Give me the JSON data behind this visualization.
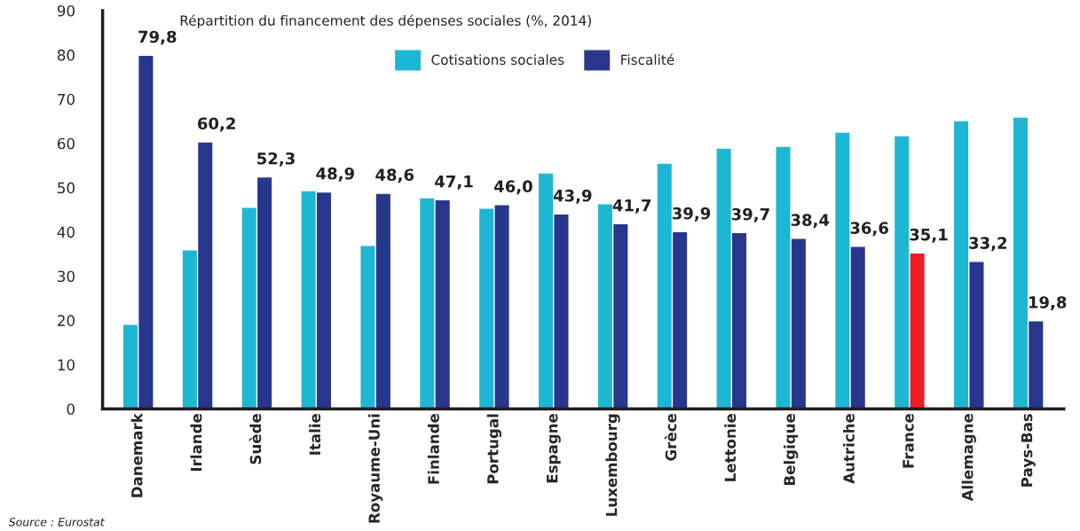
{
  "chart_data": {
    "type": "bar",
    "title": "Répartition du financement des dépenses sociales (%, 2014)",
    "categories": [
      "Danemark",
      "Irlande",
      "Suède",
      "Italie",
      "Royaume-Uni",
      "Finlande",
      "Portugal",
      "Espagne",
      "Luxembourg",
      "Grèce",
      "Lettonie",
      "Belgique",
      "Autriche",
      "France",
      "Allemagne",
      "Pays-Bas"
    ],
    "series": [
      {
        "name": "Cotisations sociales",
        "color": "#1db7d4",
        "values": [
          19.0,
          35.8,
          45.4,
          49.2,
          36.8,
          47.6,
          45.2,
          53.2,
          46.2,
          55.4,
          58.8,
          59.2,
          62.4,
          61.6,
          65.0,
          65.8
        ]
      },
      {
        "name": "Fiscalité",
        "color": "#28368c",
        "colors": [
          "#28368c",
          "#28368c",
          "#28368c",
          "#28368c",
          "#28368c",
          "#28368c",
          "#28368c",
          "#28368c",
          "#28368c",
          "#28368c",
          "#28368c",
          "#28368c",
          "#28368c",
          "#ee1c25",
          "#28368c",
          "#28368c"
        ],
        "values": [
          79.8,
          60.2,
          52.3,
          48.9,
          48.6,
          47.1,
          46.0,
          43.9,
          41.7,
          39.9,
          39.7,
          38.4,
          36.6,
          35.1,
          33.2,
          19.8
        ],
        "value_labels": [
          "79,8",
          "60,2",
          "52,3",
          "48,9",
          "48,6",
          "47,1",
          "46,0",
          "43,9",
          "41,7",
          "39,9",
          "39,7",
          "38,4",
          "36,6",
          "35,1",
          "33,2",
          "19,8"
        ]
      }
    ],
    "ylim": [
      0,
      90
    ],
    "yticks": [
      0,
      10,
      20,
      30,
      40,
      50,
      60,
      70,
      80,
      90
    ],
    "grid": false,
    "legend": "top",
    "annotations": [
      "Source : Eurostat"
    ]
  }
}
